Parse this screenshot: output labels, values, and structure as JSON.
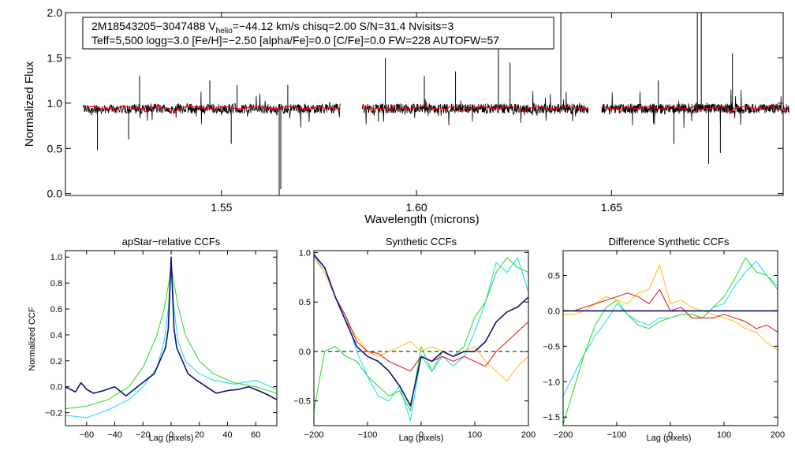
{
  "colors": {
    "obs": "#000000",
    "model": "#ff0000",
    "navy": "#0f0f7a",
    "green": "#33dd33",
    "cyan": "#22ddee",
    "orange": "#ffc020",
    "red": "#e02020"
  },
  "annotation": {
    "line1_pre": "2M18543205−3047488  V",
    "line1_sub": "helio",
    "line1_post": "=−44.12 km/s  chisq=2.00  S/N=31.4  Nvisits=3",
    "line2": "Teff=5,500 logg=3.0 [Fe/H]=−2.50 [alpha/Fe]=0.0 [C/Fe]=0.0 FW=228 AUTOFW=57"
  },
  "chart_data": [
    {
      "id": "spectrum",
      "type": "line",
      "title": "",
      "xlabel": "Wavelength (microns)",
      "ylabel": "Normalized Flux",
      "xlim": [
        1.51,
        1.694
      ],
      "ylim": [
        -0.02,
        2.0
      ],
      "xticks": [
        1.55,
        1.6,
        1.65
      ],
      "xtick_labels": [
        "1.55",
        "1.60",
        "1.65"
      ],
      "yticks": [
        0.0,
        0.5,
        1.0,
        1.5,
        2.0
      ],
      "ytick_labels": [
        "0.0",
        "0.5",
        "1.0",
        "1.5",
        "2.0"
      ],
      "chips": [
        [
          1.5145,
          1.5805
        ],
        [
          1.586,
          1.644
        ],
        [
          1.6475,
          1.6955
        ]
      ],
      "series": [
        {
          "name": "observed",
          "color": "#000000",
          "baseline": 0.94,
          "noise": 0.055
        },
        {
          "name": "model",
          "color": "#ff0000",
          "baseline": 0.95
        }
      ],
      "features": [
        {
          "x": 1.5648,
          "y": -0.02
        },
        {
          "x": 1.5652,
          "y": 0.05
        },
        {
          "x": 1.5182,
          "y": 0.48
        },
        {
          "x": 1.5262,
          "y": 0.6
        },
        {
          "x": 1.5525,
          "y": 0.55
        },
        {
          "x": 1.6749,
          "y": 0.33
        },
        {
          "x": 1.6779,
          "y": 0.45
        },
        {
          "x": 1.5902,
          "y": 0.8
        },
        {
          "x": 1.666,
          "y": 0.55
        },
        {
          "x": 1.672,
          "y": 2.0
        },
        {
          "x": 1.673,
          "y": 2.0
        },
        {
          "x": 1.637,
          "y": 2.0
        },
        {
          "x": 1.621,
          "y": 1.75
        },
        {
          "x": 1.592,
          "y": 1.5
        },
        {
          "x": 1.624,
          "y": 1.45
        },
        {
          "x": 1.61,
          "y": 1.35
        },
        {
          "x": 1.529,
          "y": 1.3
        },
        {
          "x": 1.547,
          "y": 1.25
        },
        {
          "x": 1.554,
          "y": 1.2
        },
        {
          "x": 1.602,
          "y": 1.3
        },
        {
          "x": 1.681,
          "y": 1.55
        },
        {
          "x": 1.662,
          "y": 1.25
        },
        {
          "x": 1.567,
          "y": 1.2
        }
      ]
    },
    {
      "id": "apstar-ccf",
      "type": "line",
      "title": "apStar−relative CCFs",
      "xlabel": "Lag (pixels)",
      "ylabel": "Normalized CCF",
      "xlim": [
        -75,
        75
      ],
      "ylim": [
        -0.3,
        1.05
      ],
      "xticks": [
        -60,
        -40,
        -20,
        0,
        20,
        40,
        60
      ],
      "xtick_labels": [
        "−60",
        "−40",
        "−20",
        "0",
        "20",
        "40",
        "60"
      ],
      "yticks": [
        -0.2,
        0.0,
        0.2,
        0.4,
        0.6,
        0.8,
        1.0
      ],
      "ytick_labels": [
        "−0.2",
        "0.0",
        "0.2",
        "0.4",
        "0.6",
        "0.8",
        "1.0"
      ],
      "series": [
        {
          "name": "cyan",
          "color": "#22ddee",
          "x": [
            -75,
            -60,
            -45,
            -30,
            -20,
            -10,
            -5,
            -2,
            0,
            2,
            5,
            10,
            20,
            30,
            45,
            60,
            75
          ],
          "values": [
            -0.22,
            -0.24,
            -0.18,
            -0.1,
            0.0,
            0.15,
            0.35,
            0.6,
            0.93,
            0.6,
            0.35,
            0.2,
            0.1,
            0.05,
            0.02,
            0.05,
            -0.02
          ]
        },
        {
          "name": "green",
          "color": "#33dd33",
          "x": [
            -75,
            -60,
            -45,
            -30,
            -20,
            -10,
            -5,
            -2,
            0,
            2,
            5,
            10,
            20,
            30,
            45,
            60,
            75
          ],
          "values": [
            -0.17,
            -0.15,
            -0.1,
            0.0,
            0.15,
            0.4,
            0.6,
            0.78,
            0.93,
            0.8,
            0.62,
            0.4,
            0.2,
            0.1,
            0.03,
            0.0,
            -0.05
          ]
        },
        {
          "name": "navy",
          "color": "#0f0f7a",
          "x": [
            -75,
            -68,
            -64,
            -60,
            -55,
            -48,
            -40,
            -32,
            -25,
            -18,
            -12,
            -8,
            -4,
            -2,
            0,
            2,
            4,
            8,
            12,
            18,
            25,
            32,
            40,
            48,
            55,
            62,
            68,
            75
          ],
          "values": [
            0.0,
            -0.04,
            0.03,
            -0.02,
            -0.05,
            -0.03,
            0.0,
            -0.07,
            -0.01,
            0.05,
            0.1,
            0.2,
            0.3,
            0.45,
            1.0,
            0.45,
            0.3,
            0.2,
            0.1,
            0.05,
            0.0,
            -0.05,
            -0.03,
            -0.02,
            0.0,
            -0.03,
            -0.06,
            -0.1
          ]
        }
      ]
    },
    {
      "id": "synthetic-ccf",
      "type": "line",
      "title": "Synthetic CCFs",
      "xlabel": "Lag (pixels)",
      "ylabel": "",
      "xlim": [
        -200,
        200
      ],
      "ylim": [
        -0.75,
        1.02
      ],
      "xticks": [
        -200,
        -100,
        0,
        100,
        200
      ],
      "xtick_labels": [
        "−200",
        "−100",
        "0",
        "100",
        "200"
      ],
      "yticks": [
        -0.5,
        0.0,
        0.5,
        1.0
      ],
      "ytick_labels": [
        "−0.5",
        "0.0",
        "0.5",
        "1.0"
      ],
      "hline": 0.0,
      "series": [
        {
          "name": "cyan",
          "color": "#22ddee",
          "x": [
            -200,
            -180,
            -160,
            -140,
            -120,
            -100,
            -80,
            -60,
            -40,
            -20,
            0,
            20,
            40,
            60,
            80,
            100,
            120,
            140,
            160,
            180,
            200
          ],
          "values": [
            0.98,
            0.8,
            0.55,
            0.35,
            0.0,
            -0.25,
            -0.45,
            -0.5,
            -0.35,
            -0.7,
            -0.05,
            -0.2,
            -0.05,
            -0.15,
            -0.05,
            0.2,
            0.5,
            0.9,
            0.8,
            0.95,
            0.6
          ]
        },
        {
          "name": "green",
          "color": "#33dd33",
          "x": [
            -200,
            -180,
            -160,
            -140,
            -120,
            -100,
            -80,
            -60,
            -40,
            -20,
            0,
            20,
            40,
            60,
            80,
            100,
            120,
            140,
            160,
            180,
            200
          ],
          "values": [
            -0.6,
            0.0,
            0.05,
            -0.05,
            -0.1,
            -0.25,
            -0.35,
            -0.45,
            -0.4,
            -0.6,
            0.05,
            -0.2,
            0.0,
            -0.05,
            0.05,
            0.35,
            0.5,
            0.8,
            0.95,
            0.85,
            0.8
          ]
        },
        {
          "name": "orange",
          "color": "#ffc020",
          "x": [
            -200,
            -180,
            -160,
            -140,
            -120,
            -100,
            -80,
            -60,
            -40,
            -20,
            0,
            20,
            40,
            60,
            80,
            100,
            120,
            140,
            160,
            180,
            200
          ],
          "values": [
            0.95,
            0.8,
            0.55,
            0.3,
            0.15,
            0.0,
            -0.05,
            0.0,
            0.05,
            0.1,
            0.0,
            0.05,
            0.0,
            -0.05,
            0.0,
            0.05,
            -0.1,
            -0.2,
            -0.3,
            -0.15,
            -0.05
          ]
        },
        {
          "name": "red",
          "color": "#e02020",
          "x": [
            -200,
            -180,
            -160,
            -140,
            -120,
            -100,
            -80,
            -60,
            -40,
            -20,
            0,
            20,
            40,
            60,
            80,
            100,
            120,
            140,
            160,
            180,
            200
          ],
          "values": [
            0.98,
            0.85,
            0.55,
            0.35,
            0.1,
            0.0,
            -0.02,
            -0.1,
            -0.15,
            -0.2,
            -0.05,
            -0.1,
            -0.05,
            -0.1,
            -0.05,
            -0.1,
            -0.15,
            0.0,
            0.1,
            0.2,
            0.3
          ]
        },
        {
          "name": "navy",
          "color": "#0f0f7a",
          "x": [
            -200,
            -180,
            -160,
            -140,
            -120,
            -100,
            -80,
            -60,
            -40,
            -20,
            0,
            20,
            40,
            60,
            80,
            100,
            120,
            140,
            160,
            180,
            200
          ],
          "values": [
            0.98,
            0.85,
            0.55,
            0.3,
            0.05,
            -0.05,
            -0.1,
            -0.2,
            -0.35,
            -0.55,
            -0.05,
            -0.1,
            0.0,
            -0.05,
            0.0,
            0.0,
            0.1,
            0.3,
            0.4,
            0.45,
            0.55
          ]
        }
      ]
    },
    {
      "id": "difference-ccf",
      "type": "line",
      "title": "Difference Synthetic CCFs",
      "xlabel": "Lag (pixels)",
      "ylabel": "",
      "xlim": [
        -200,
        200
      ],
      "ylim": [
        -1.62,
        0.85
      ],
      "xticks": [
        -200,
        -100,
        0,
        100,
        200
      ],
      "xtick_labels": [
        "−200",
        "−100",
        "0",
        "100",
        "200"
      ],
      "yticks": [
        -1.5,
        -1.0,
        -0.5,
        0.0,
        0.5
      ],
      "ytick_labels": [
        "−1.5",
        "−1.0",
        "−0.5",
        "0.0",
        "0.5"
      ],
      "hline": 0.0,
      "series": [
        {
          "name": "cyan",
          "color": "#22ddee",
          "x": [
            -200,
            -180,
            -160,
            -140,
            -120,
            -100,
            -80,
            -60,
            -40,
            -20,
            0,
            20,
            40,
            60,
            80,
            100,
            120,
            140,
            160,
            180,
            200
          ],
          "values": [
            -1.2,
            -0.9,
            -0.6,
            -0.35,
            -0.15,
            0.1,
            -0.05,
            -0.15,
            -0.2,
            -0.1,
            -0.1,
            -0.05,
            -0.05,
            -0.1,
            0.05,
            0.1,
            0.35,
            0.55,
            0.7,
            0.5,
            0.35
          ]
        },
        {
          "name": "green",
          "color": "#33dd33",
          "x": [
            -200,
            -180,
            -160,
            -140,
            -120,
            -100,
            -80,
            -60,
            -40,
            -20,
            0,
            20,
            40,
            60,
            80,
            100,
            120,
            140,
            160,
            180,
            200
          ],
          "values": [
            -1.6,
            -1.1,
            -0.6,
            -0.2,
            0.05,
            0.15,
            -0.05,
            -0.2,
            -0.25,
            -0.15,
            -0.1,
            -0.05,
            -0.05,
            -0.1,
            0.05,
            0.2,
            0.45,
            0.75,
            0.55,
            0.5,
            0.3
          ]
        },
        {
          "name": "orange",
          "color": "#ffc020",
          "x": [
            -200,
            -180,
            -160,
            -140,
            -120,
            -100,
            -80,
            -60,
            -40,
            -20,
            0,
            20,
            40,
            60,
            80,
            100,
            120,
            140,
            160,
            180,
            200
          ],
          "values": [
            -0.05,
            -0.05,
            0.0,
            0.1,
            0.2,
            0.15,
            0.1,
            0.25,
            0.3,
            0.65,
            0.1,
            0.15,
            0.05,
            0.0,
            -0.05,
            -0.1,
            -0.15,
            -0.25,
            -0.3,
            -0.45,
            -0.55
          ]
        },
        {
          "name": "red",
          "color": "#e02020",
          "x": [
            -200,
            -180,
            -160,
            -140,
            -120,
            -100,
            -80,
            -60,
            -40,
            -20,
            0,
            20,
            40,
            60,
            80,
            100,
            120,
            140,
            160,
            180,
            200
          ],
          "values": [
            0.0,
            0.0,
            0.05,
            0.1,
            0.15,
            0.2,
            0.25,
            0.2,
            0.1,
            0.3,
            0.0,
            0.05,
            -0.1,
            -0.1,
            -0.1,
            -0.05,
            -0.1,
            -0.15,
            -0.25,
            -0.2,
            -0.3
          ]
        },
        {
          "name": "navy",
          "color": "#0f0f7a",
          "x": [
            -200,
            200
          ],
          "values": [
            0.0,
            0.0
          ]
        }
      ]
    }
  ]
}
